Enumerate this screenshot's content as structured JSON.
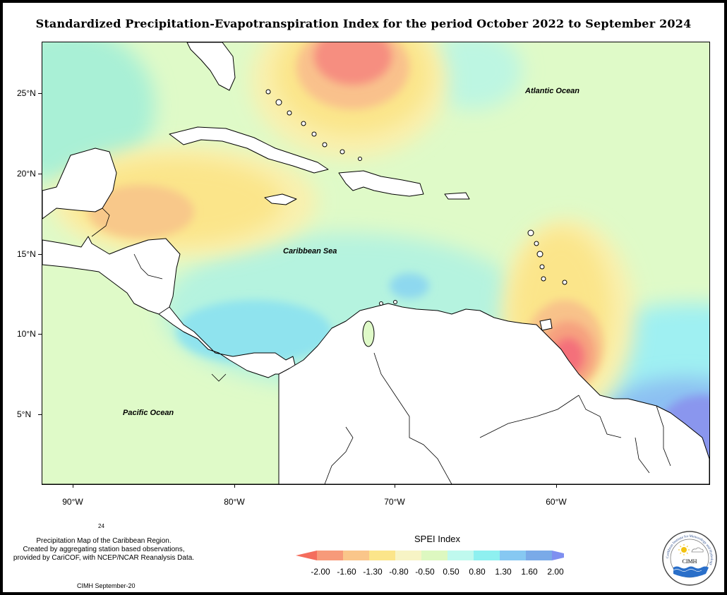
{
  "title": "Standardized Precipitation-Evapotranspiration Index for the period October 2022 to September 2024",
  "map": {
    "lat_labels": [
      "25°N",
      "20°N",
      "15°N",
      "10°N",
      "5°N"
    ],
    "lon_labels": [
      "90°W",
      "80°W",
      "70°W",
      "60°W"
    ],
    "ocean_labels": {
      "atlantic": "Atlantic Ocean",
      "caribbean": "Caribbean Sea",
      "pacific": "Pacific Ocean"
    }
  },
  "footer": {
    "number": "24",
    "caption_line1": "Precipitation Map of the Caribbean Region.",
    "caption_line2": "Created by aggregating station based observations,",
    "caption_line3": "provided by CariCOF, with NCEP/NCAR Reanalysis Data.",
    "credit": "CIMH September-20"
  },
  "legend": {
    "title": "SPEI Index",
    "ticks": [
      "-2.00",
      "-1.60",
      "-1.30",
      "-0.80",
      "-0.50",
      "0.50",
      "0.80",
      "1.30",
      "1.60",
      "2.00"
    ],
    "colors": [
      "#f46d5d",
      "#f79a7a",
      "#fac68a",
      "#fbe58a",
      "#f7f4c5",
      "#ddf8c0",
      "#bff9ee",
      "#8ef0f0",
      "#86c8f2",
      "#7aaae8",
      "#7f8ff0"
    ]
  },
  "logo": {
    "acronym": "CIMH",
    "ring_text": "Caribbean Institute for Meteorology and Hydrology"
  }
}
